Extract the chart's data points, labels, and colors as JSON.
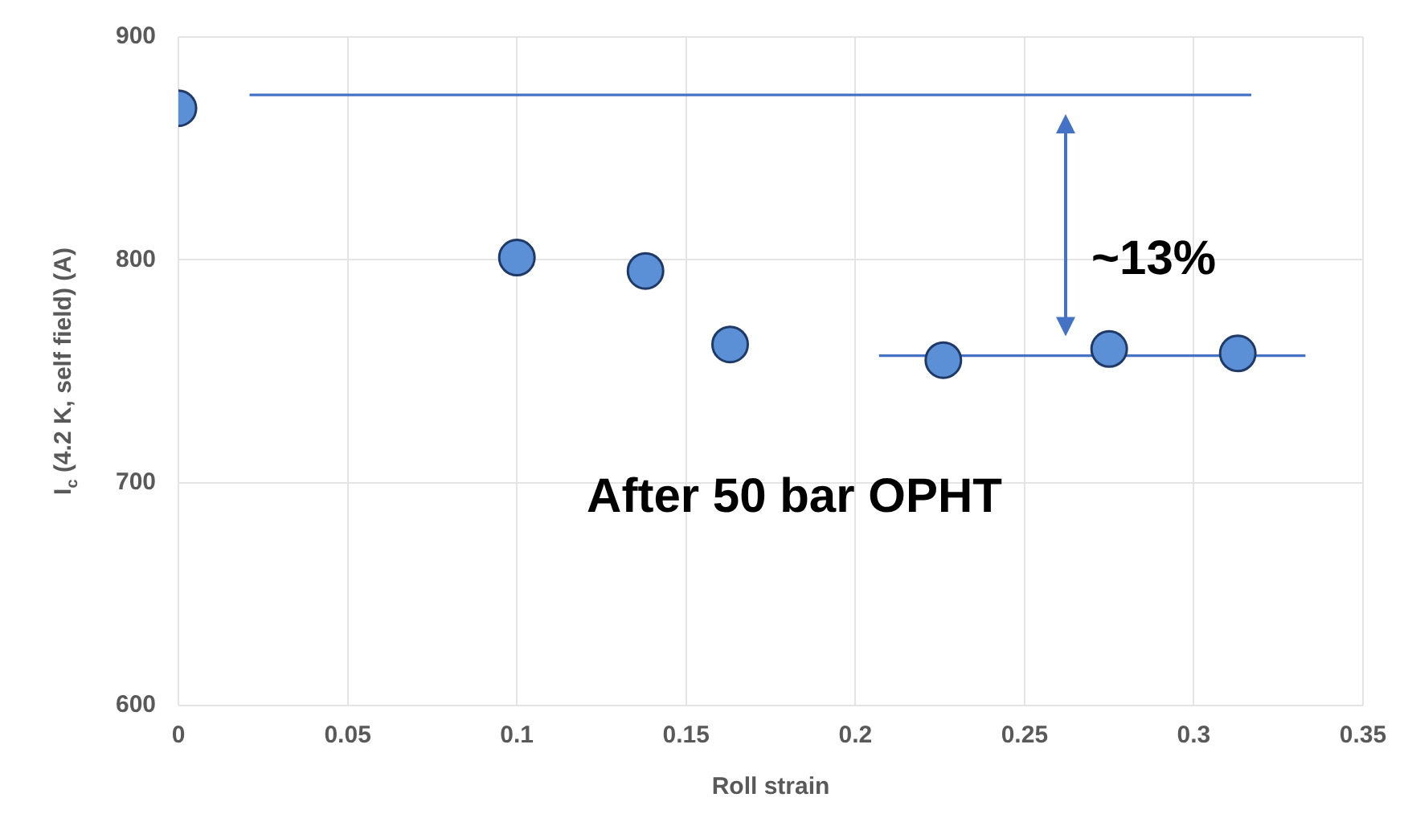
{
  "chart_data": {
    "type": "scatter",
    "xlabel": "Roll strain",
    "ylabel": "I$_{c}$ (4.2 K, self field) (A)",
    "series": [
      {
        "color": "#5b8fd6",
        "x": [
          0,
          0.1,
          0.138,
          0.163,
          0.226,
          0.275,
          0.313
        ],
        "values": [
          868,
          801,
          795,
          762,
          755,
          760,
          758
        ]
      },
      {
        "type": "line",
        "marker": "none",
        "color": "#4472c4",
        "x": [
          0.021,
          0.317
        ],
        "values": [
          874,
          874
        ]
      },
      {
        "type": "line",
        "marker": "none",
        "color": "#4472c4",
        "x": [
          0.207,
          0.333
        ],
        "values": [
          757,
          757
        ]
      }
    ],
    "xlim": [
      0,
      0.35
    ],
    "xticks": [
      0,
      0.05,
      0.1,
      0.15,
      0.2,
      0.25,
      0.3,
      0.35
    ],
    "ylim": [
      600,
      900
    ],
    "yticks": [
      600,
      700,
      800,
      900
    ],
    "grid": true,
    "legend": false,
    "marker": "circle",
    "annotations": [
      "~13%",
      "After 50 bar OPHT"
    ]
  }
}
